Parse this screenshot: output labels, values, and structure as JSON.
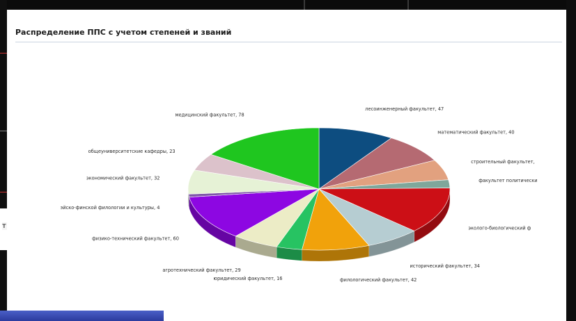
{
  "heading": "Распределение ППС с учетом степеней и званий",
  "side_letter": "т",
  "chart_data": {
    "type": "pie",
    "title": "Распределение ППС с учетом степеней и званий",
    "slices": [
      {
        "label": "лесоинженерный факультет, 47",
        "value": 47,
        "color": "#0d4d80"
      },
      {
        "label": "математический факультет, 40",
        "value": 40,
        "color": "#b56a72"
      },
      {
        "label": "строительный факультет,",
        "value": 27,
        "color": "#e2a17f"
      },
      {
        "label": "факультет политически",
        "value": 11,
        "color": "#7fa79b"
      },
      {
        "label": "эколого-биологический ф",
        "value": 62,
        "color": "#cc0f16"
      },
      {
        "label": "исторический факультет, 34",
        "value": 34,
        "color": "#b6cdd2"
      },
      {
        "label": "филологический факультет, 42",
        "value": 42,
        "color": "#f1a20b"
      },
      {
        "label": "юридический факультет, 16",
        "value": 16,
        "color": "#27c362"
      },
      {
        "label": "агротехнический факультет, 29",
        "value": 29,
        "color": "#ececc6"
      },
      {
        "label": "физико-технический факультет, 60",
        "value": 60,
        "color": "#8d07e2"
      },
      {
        "label": "эйско-финской филологии и культуры, 4",
        "value": 4,
        "color": "#7f57a8"
      },
      {
        "label": "экономический факультет, 32",
        "value": 32,
        "color": "#e6f2d6"
      },
      {
        "label": "общеуниверситетские кафедры, 23",
        "value": 23,
        "color": "#dcc2cb"
      },
      {
        "label": "медицинский факультет, 78",
        "value": 78,
        "color": "#1fc61f"
      }
    ],
    "legend": "none"
  }
}
